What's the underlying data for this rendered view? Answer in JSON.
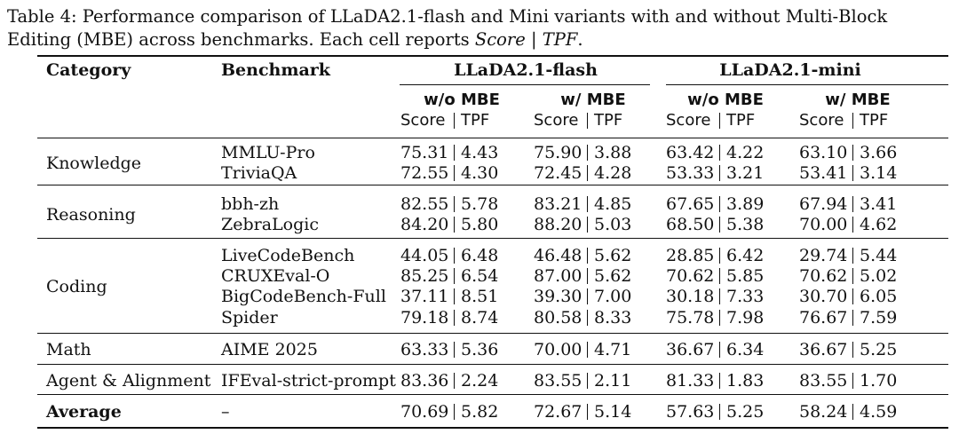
{
  "caption": {
    "prefix": "Table 4: Performance comparison of LLaDA2.1-flash and Mini variants with and without Multi-Block Editing (MBE) across benchmarks. Each cell reports ",
    "score_word": "Score",
    "sep": " | ",
    "tpf_word": "TPF",
    "suffix": "."
  },
  "header": {
    "category": "Category",
    "benchmark": "Benchmark",
    "group_flash": "LLaDA2.1-flash",
    "group_mini": "LLaDA2.1-mini",
    "wo_mbe": "w/o MBE",
    "w_mbe": "w/ MBE",
    "score": "Score",
    "tpf": "TPF"
  },
  "groups": [
    {
      "category": "Knowledge",
      "rows": [
        {
          "benchmark": "MMLU-Pro",
          "vals": [
            "75.31",
            "4.43",
            "75.90",
            "3.88",
            "63.42",
            "4.22",
            "63.10",
            "3.66"
          ]
        },
        {
          "benchmark": "TriviaQA",
          "vals": [
            "72.55",
            "4.30",
            "72.45",
            "4.28",
            "53.33",
            "3.21",
            "53.41",
            "3.14"
          ]
        }
      ]
    },
    {
      "category": "Reasoning",
      "rows": [
        {
          "benchmark": "bbh-zh",
          "vals": [
            "82.55",
            "5.78",
            "83.21",
            "4.85",
            "67.65",
            "3.89",
            "67.94",
            "3.41"
          ]
        },
        {
          "benchmark": "ZebraLogic",
          "vals": [
            "84.20",
            "5.80",
            "88.20",
            "5.03",
            "68.50",
            "5.38",
            "70.00",
            "4.62"
          ]
        }
      ]
    },
    {
      "category": "Coding",
      "rows": [
        {
          "benchmark": "LiveCodeBench",
          "vals": [
            "44.05",
            "6.48",
            "46.48",
            "5.62",
            "28.85",
            "6.42",
            "29.74",
            "5.44"
          ]
        },
        {
          "benchmark": "CRUXEval-O",
          "vals": [
            "85.25",
            "6.54",
            "87.00",
            "5.62",
            "70.62",
            "5.85",
            "70.62",
            "5.02"
          ]
        },
        {
          "benchmark": "BigCodeBench-Full",
          "vals": [
            "37.11",
            "8.51",
            "39.30",
            "7.00",
            "30.18",
            "7.33",
            "30.70",
            "6.05"
          ]
        },
        {
          "benchmark": "Spider",
          "vals": [
            "79.18",
            "8.74",
            "80.58",
            "8.33",
            "75.78",
            "7.98",
            "76.67",
            "7.59"
          ]
        }
      ]
    },
    {
      "category": "Math",
      "rows": [
        {
          "benchmark": "AIME 2025",
          "vals": [
            "63.33",
            "5.36",
            "70.00",
            "4.71",
            "36.67",
            "6.34",
            "36.67",
            "5.25"
          ]
        }
      ]
    },
    {
      "category": "Agent & Alignment",
      "rows": [
        {
          "benchmark": "IFEval-strict-prompt",
          "vals": [
            "83.36",
            "2.24",
            "83.55",
            "2.11",
            "81.33",
            "1.83",
            "83.55",
            "1.70"
          ]
        }
      ]
    },
    {
      "category": "Average",
      "bold": true,
      "rows": [
        {
          "benchmark": "–",
          "vals": [
            "70.69",
            "5.82",
            "72.67",
            "5.14",
            "57.63",
            "5.25",
            "58.24",
            "4.59"
          ]
        }
      ]
    }
  ]
}
